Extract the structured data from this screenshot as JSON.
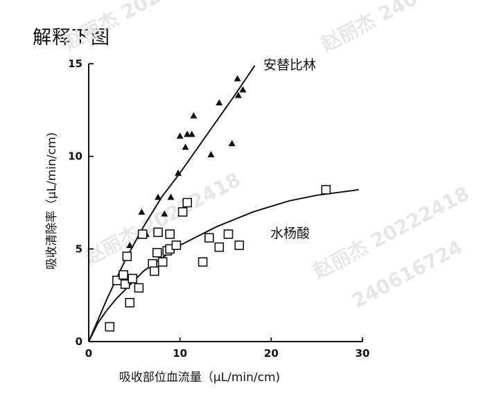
{
  "page": {
    "heading": "解释下图"
  },
  "watermarks": [
    {
      "name": "赵丽杰",
      "id": "20222418",
      "num": "240616724"
    },
    {
      "name": "赵丽杰",
      "id": "20222418",
      "num": "240616724"
    },
    {
      "name": "赵丽杰",
      "id": "20222418",
      "num": "240616724"
    }
  ],
  "chart_data": {
    "type": "scatter",
    "xlabel": "吸收部位血流量（μL/min/cm)",
    "ylabel": "吸收清除率（μL/min/cm)",
    "xlim": [
      0,
      30
    ],
    "ylim": [
      0,
      15
    ],
    "x_ticks": [
      "0",
      "10",
      "20",
      "30"
    ],
    "y_ticks": [
      "0",
      "5",
      "10",
      "15"
    ],
    "grid": false,
    "series": [
      {
        "name": "安替比林",
        "marker": "triangle",
        "color": "#111111",
        "points": [
          {
            "x": 4.5,
            "y": 5.2
          },
          {
            "x": 5.8,
            "y": 7.0
          },
          {
            "x": 6.3,
            "y": 5.8
          },
          {
            "x": 7.6,
            "y": 7.8
          },
          {
            "x": 8.3,
            "y": 6.9
          },
          {
            "x": 9.0,
            "y": 7.8
          },
          {
            "x": 9.8,
            "y": 9.1
          },
          {
            "x": 10.0,
            "y": 11.1
          },
          {
            "x": 10.6,
            "y": 10.5
          },
          {
            "x": 10.8,
            "y": 11.2
          },
          {
            "x": 11.3,
            "y": 11.2
          },
          {
            "x": 11.5,
            "y": 12.2
          },
          {
            "x": 13.4,
            "y": 10.1
          },
          {
            "x": 14.3,
            "y": 12.9
          },
          {
            "x": 15.7,
            "y": 10.7
          },
          {
            "x": 16.3,
            "y": 14.2
          },
          {
            "x": 16.4,
            "y": 13.3
          },
          {
            "x": 16.9,
            "y": 13.6
          }
        ],
        "fit": [
          {
            "x": 0,
            "y": 0
          },
          {
            "x": 2,
            "y": 2.3
          },
          {
            "x": 4,
            "y": 4.4
          },
          {
            "x": 6,
            "y": 6.2
          },
          {
            "x": 8,
            "y": 7.8
          },
          {
            "x": 10,
            "y": 9.1
          },
          {
            "x": 12,
            "y": 10.5
          },
          {
            "x": 14,
            "y": 11.9
          },
          {
            "x": 16,
            "y": 13.3
          },
          {
            "x": 18.2,
            "y": 14.9
          }
        ]
      },
      {
        "name": "水杨酸",
        "marker": "square",
        "color": "#111111",
        "points": [
          {
            "x": 2.3,
            "y": 0.8
          },
          {
            "x": 3.1,
            "y": 3.3
          },
          {
            "x": 3.8,
            "y": 3.6
          },
          {
            "x": 4.0,
            "y": 3.1
          },
          {
            "x": 4.2,
            "y": 4.6
          },
          {
            "x": 4.5,
            "y": 2.1
          },
          {
            "x": 4.8,
            "y": 3.4
          },
          {
            "x": 5.5,
            "y": 2.9
          },
          {
            "x": 5.9,
            "y": 5.8
          },
          {
            "x": 7.0,
            "y": 4.2
          },
          {
            "x": 7.2,
            "y": 3.8
          },
          {
            "x": 7.5,
            "y": 4.8
          },
          {
            "x": 7.6,
            "y": 5.9
          },
          {
            "x": 8.1,
            "y": 4.3
          },
          {
            "x": 8.6,
            "y": 4.9
          },
          {
            "x": 8.9,
            "y": 5.0
          },
          {
            "x": 8.9,
            "y": 5.8
          },
          {
            "x": 9.6,
            "y": 5.2
          },
          {
            "x": 10.3,
            "y": 7.0
          },
          {
            "x": 10.8,
            "y": 7.5
          },
          {
            "x": 12.5,
            "y": 4.3
          },
          {
            "x": 13.2,
            "y": 5.6
          },
          {
            "x": 14.3,
            "y": 5.1
          },
          {
            "x": 15.3,
            "y": 5.8
          },
          {
            "x": 16.5,
            "y": 5.2
          },
          {
            "x": 26.0,
            "y": 8.2
          }
        ],
        "fit": [
          {
            "x": 0,
            "y": 0
          },
          {
            "x": 1,
            "y": 1.0
          },
          {
            "x": 2,
            "y": 1.7
          },
          {
            "x": 3,
            "y": 2.3
          },
          {
            "x": 4,
            "y": 2.8
          },
          {
            "x": 5,
            "y": 3.3
          },
          {
            "x": 6,
            "y": 3.8
          },
          {
            "x": 8,
            "y": 4.5
          },
          {
            "x": 10,
            "y": 5.2
          },
          {
            "x": 12,
            "y": 5.7
          },
          {
            "x": 14,
            "y": 6.2
          },
          {
            "x": 16,
            "y": 6.6
          },
          {
            "x": 18,
            "y": 7.0
          },
          {
            "x": 20,
            "y": 7.3
          },
          {
            "x": 22,
            "y": 7.6
          },
          {
            "x": 25,
            "y": 7.9
          },
          {
            "x": 29.6,
            "y": 8.2
          }
        ]
      }
    ]
  }
}
